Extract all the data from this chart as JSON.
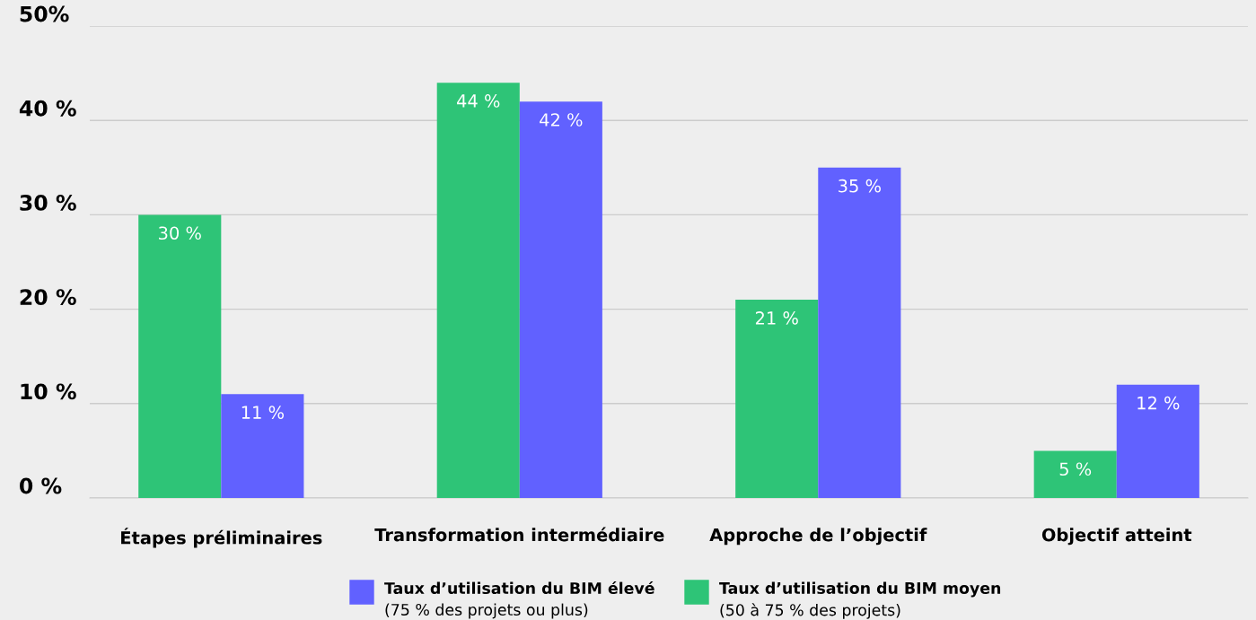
{
  "chart_data": {
    "type": "bar",
    "categories": [
      "Étapes préliminaires",
      "Transformation intermédiaire",
      "Approche de l’objectif",
      "Objectif atteint"
    ],
    "series": [
      {
        "name": "Taux d’utilisation du BIM moyen\n(50 à 75 % des projets)",
        "color": "#2ec477",
        "values": [
          30,
          44,
          21,
          5
        ],
        "value_labels": [
          "30 %",
          "44 %",
          "21 %",
          "5 %"
        ]
      },
      {
        "name": "Taux d’utilisation du BIM élevé\n(75 % des projets ou plus)",
        "color": "#6161ff",
        "values": [
          11,
          42,
          35,
          12
        ],
        "value_labels": [
          "11 %",
          "42 %",
          "35 %",
          "12 %"
        ]
      }
    ],
    "ylim": [
      0,
      50
    ],
    "yticks": [
      {
        "value": 0,
        "label": "0 %"
      },
      {
        "value": 10,
        "label": "10 %"
      },
      {
        "value": 20,
        "label": "20 %"
      },
      {
        "value": 30,
        "label": "30 %"
      },
      {
        "value": 40,
        "label": "40 %"
      },
      {
        "value": 50,
        "label": "50%"
      }
    ],
    "grid": "y",
    "legend": "bottom"
  }
}
